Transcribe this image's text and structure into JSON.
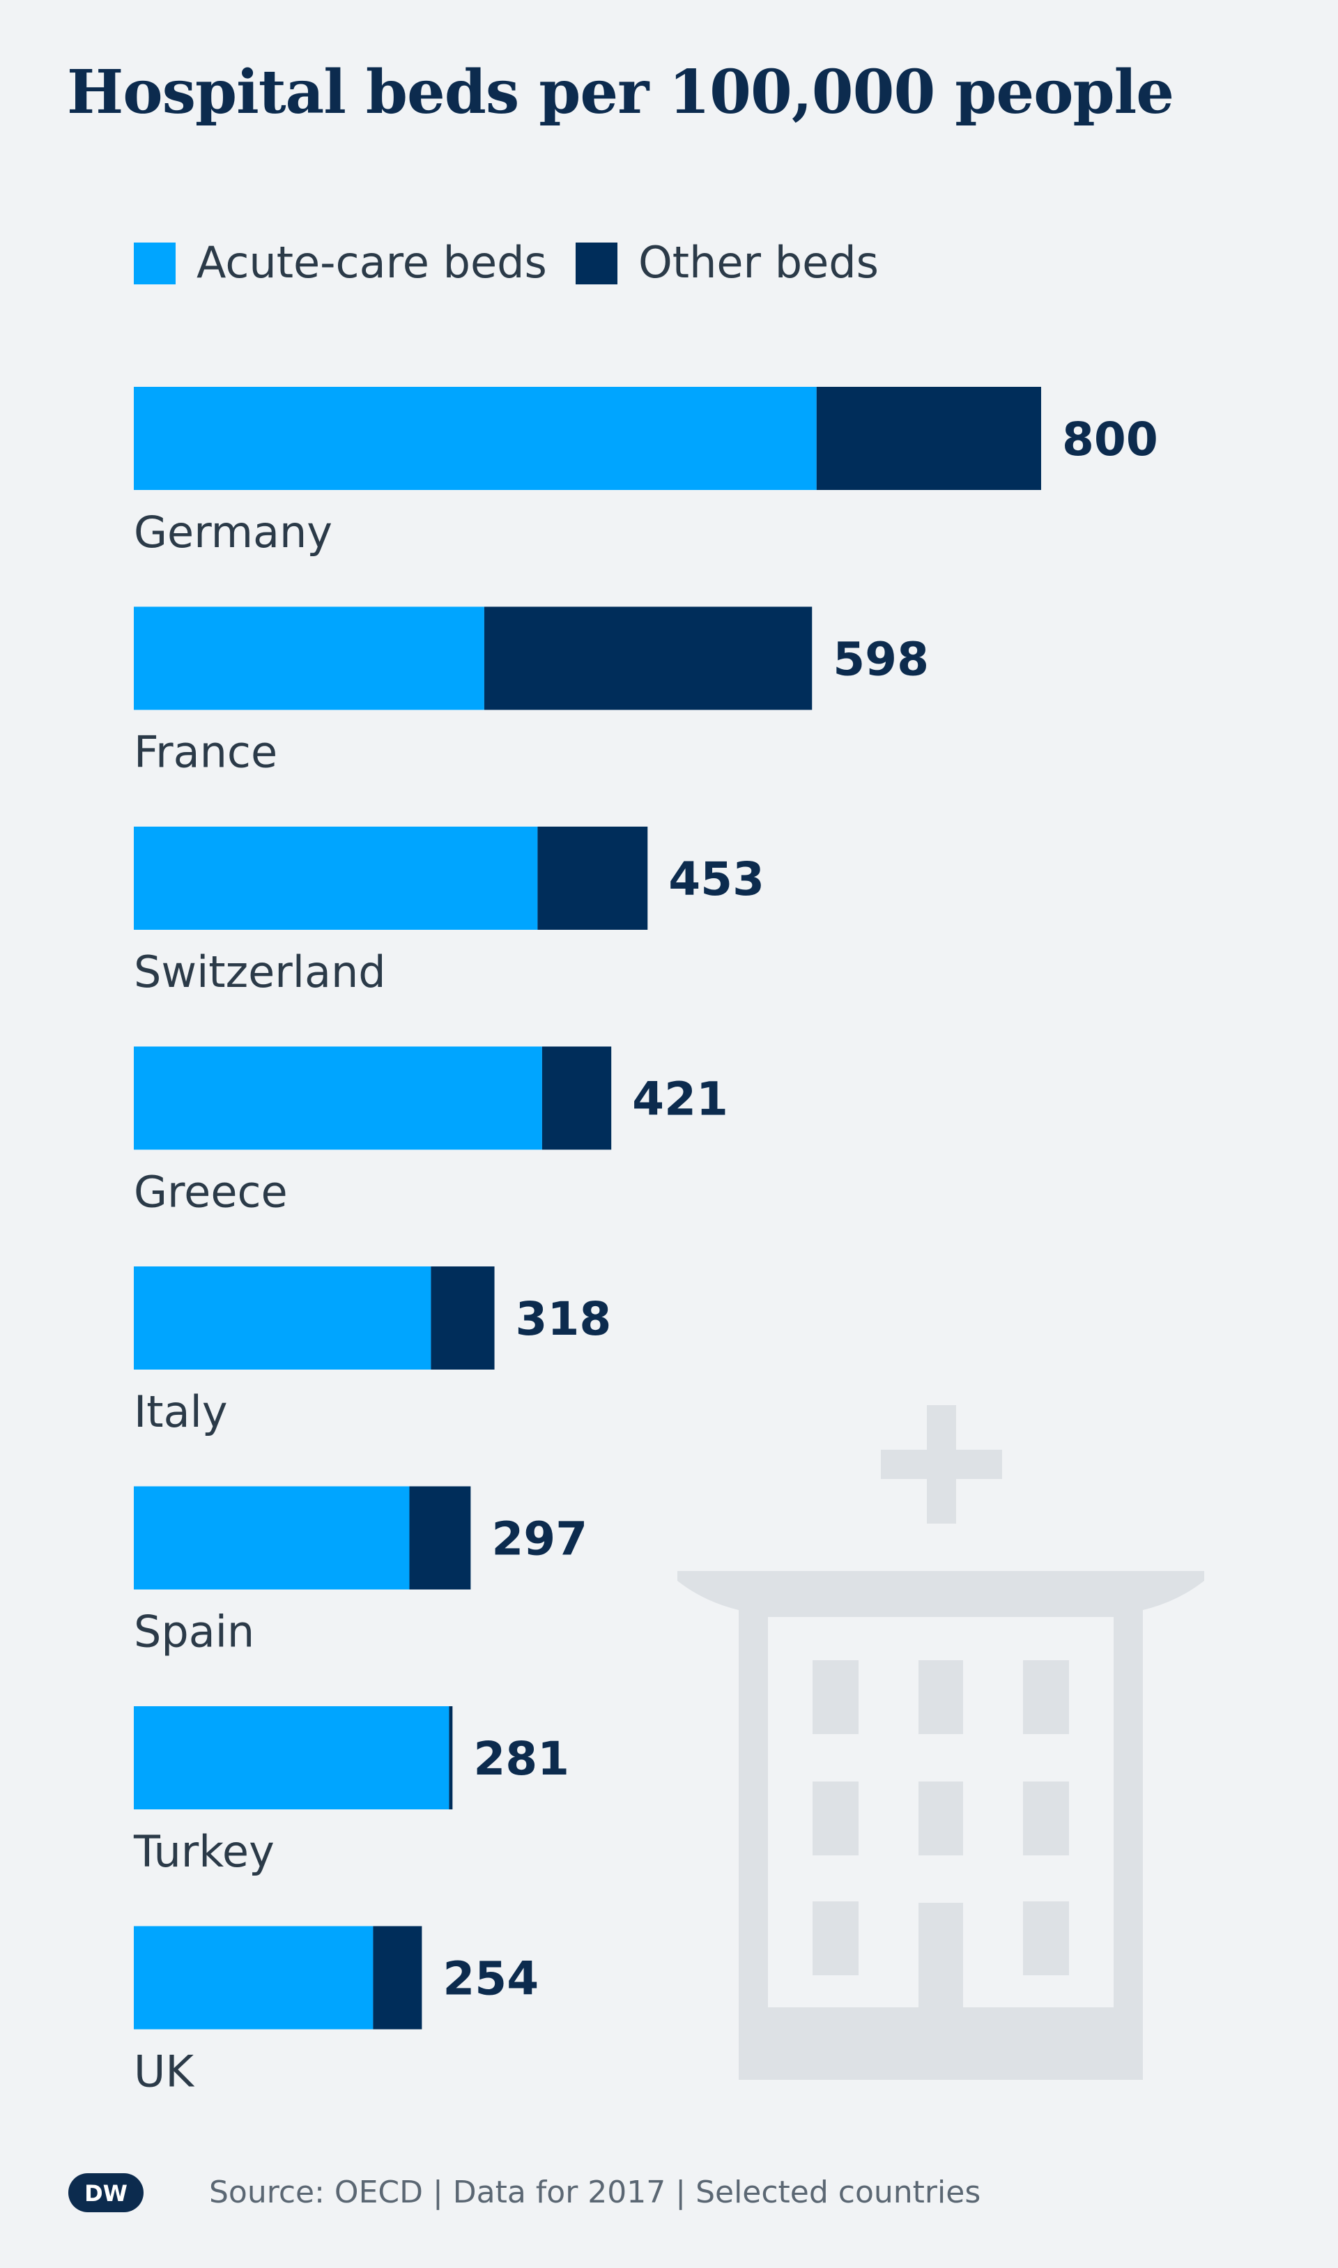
{
  "title": "Hospital beds per 100,000 people",
  "legend": [
    {
      "label": "Acute-care beds",
      "color": "#00a5ff"
    },
    {
      "label": "Other beds",
      "color": "#002d5a"
    }
  ],
  "chart_data": {
    "type": "bar",
    "orientation": "horizontal",
    "stacked": true,
    "title": "Hospital beds per 100,000 people",
    "categories": [
      "Germany",
      "France",
      "Switzerland",
      "Greece",
      "Italy",
      "Spain",
      "Turkey",
      "UK"
    ],
    "series": [
      {
        "name": "Acute-care beds",
        "color": "#00a5ff",
        "values": [
          602,
          309,
          356,
          360,
          262,
          243,
          278,
          211
        ]
      },
      {
        "name": "Other beds",
        "color": "#002d5a",
        "values": [
          198,
          289,
          97,
          61,
          56,
          54,
          3,
          43
        ]
      }
    ],
    "totals": [
      800,
      598,
      453,
      421,
      318,
      297,
      281,
      254
    ],
    "total_labels": [
      "800",
      "598",
      "453",
      "421",
      "318",
      "297",
      "281",
      "254"
    ],
    "xlim": [
      0,
      800
    ],
    "grid": false,
    "legend_position": "top-left"
  },
  "footer": {
    "logo_text": "DW",
    "source": "Source: OECD | Data for 2017 | Selected countries"
  },
  "colors": {
    "background": "#f1f3f5",
    "title": "#0c2b4e",
    "value_label": "#0c2b4e",
    "category_label": "#2b3a48",
    "illustration": "#dde1e5"
  }
}
